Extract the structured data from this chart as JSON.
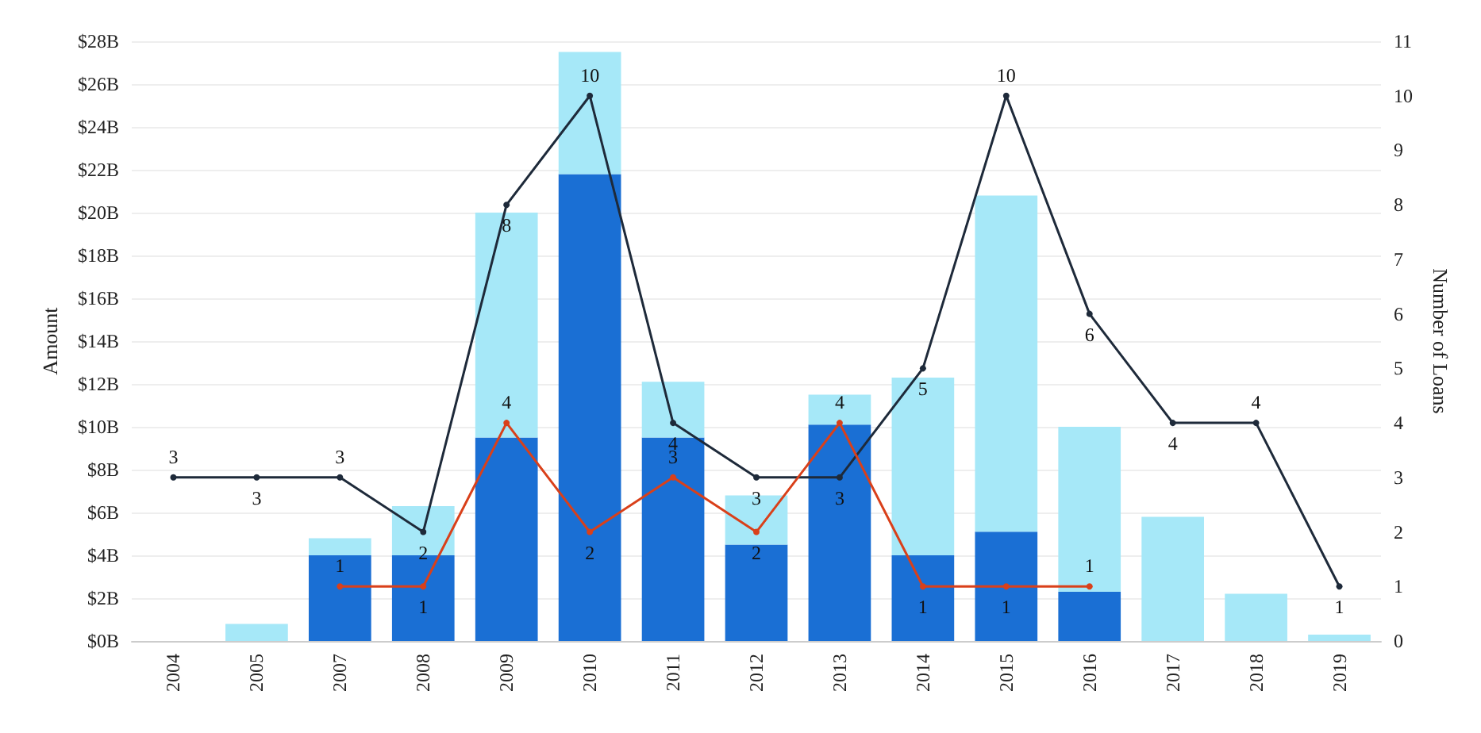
{
  "chart_data": {
    "type": "bar",
    "stacked": true,
    "xlabel": null,
    "ylabel": "Amount",
    "y2label": "Number of Loans",
    "categories": [
      "2004",
      "2005",
      "2007",
      "2008",
      "2009",
      "2010",
      "2011",
      "2012",
      "2013",
      "2014",
      "2015",
      "2016",
      "2017",
      "2018",
      "2019"
    ],
    "series": [
      {
        "color": "#1a6fd4",
        "values": [
          null,
          null,
          4,
          4,
          9.5,
          21.8,
          9.5,
          4.5,
          10.1,
          4,
          5.1,
          2.3,
          null,
          null,
          null
        ]
      },
      {
        "color": "#a6e8f8",
        "values": [
          0,
          0.8,
          0.8,
          2.3,
          10.5,
          5.7,
          2.6,
          2.3,
          1.4,
          8.3,
          15.7,
          7.7,
          5.8,
          2.2,
          0.3
        ]
      },
      {
        "type": "line",
        "axis": "y2",
        "color": "#1e2a3a",
        "data_labels": true,
        "values": [
          3,
          3,
          3,
          2,
          8,
          10,
          4,
          3,
          3,
          5,
          10,
          6,
          4,
          4,
          1
        ]
      },
      {
        "type": "line",
        "axis": "y2",
        "color": "#d9401a",
        "data_labels": true,
        "values": [
          null,
          null,
          1,
          1,
          4,
          2,
          3,
          2,
          4,
          1,
          1,
          1,
          null,
          null,
          null
        ]
      }
    ],
    "ylim": [
      0,
      28
    ],
    "yticks": [
      {
        "value": 0,
        "label": "$0B"
      },
      {
        "value": 2,
        "label": "$2B"
      },
      {
        "value": 4,
        "label": "$4B"
      },
      {
        "value": 6,
        "label": "$6B"
      },
      {
        "value": 8,
        "label": "$8B"
      },
      {
        "value": 10,
        "label": "$10B"
      },
      {
        "value": 12,
        "label": "$12B"
      },
      {
        "value": 14,
        "label": "$14B"
      },
      {
        "value": 16,
        "label": "$16B"
      },
      {
        "value": 18,
        "label": "$18B"
      },
      {
        "value": 20,
        "label": "$20B"
      },
      {
        "value": 22,
        "label": "$22B"
      },
      {
        "value": 24,
        "label": "$24B"
      },
      {
        "value": 26,
        "label": "$26B"
      },
      {
        "value": 28,
        "label": "$28B"
      }
    ],
    "y2lim": [
      0,
      11
    ],
    "y2ticks": [
      0,
      1,
      2,
      3,
      4,
      5,
      6,
      7,
      8,
      9,
      10,
      11
    ],
    "grid": "y",
    "marker": "circle",
    "line_style": "solid"
  }
}
